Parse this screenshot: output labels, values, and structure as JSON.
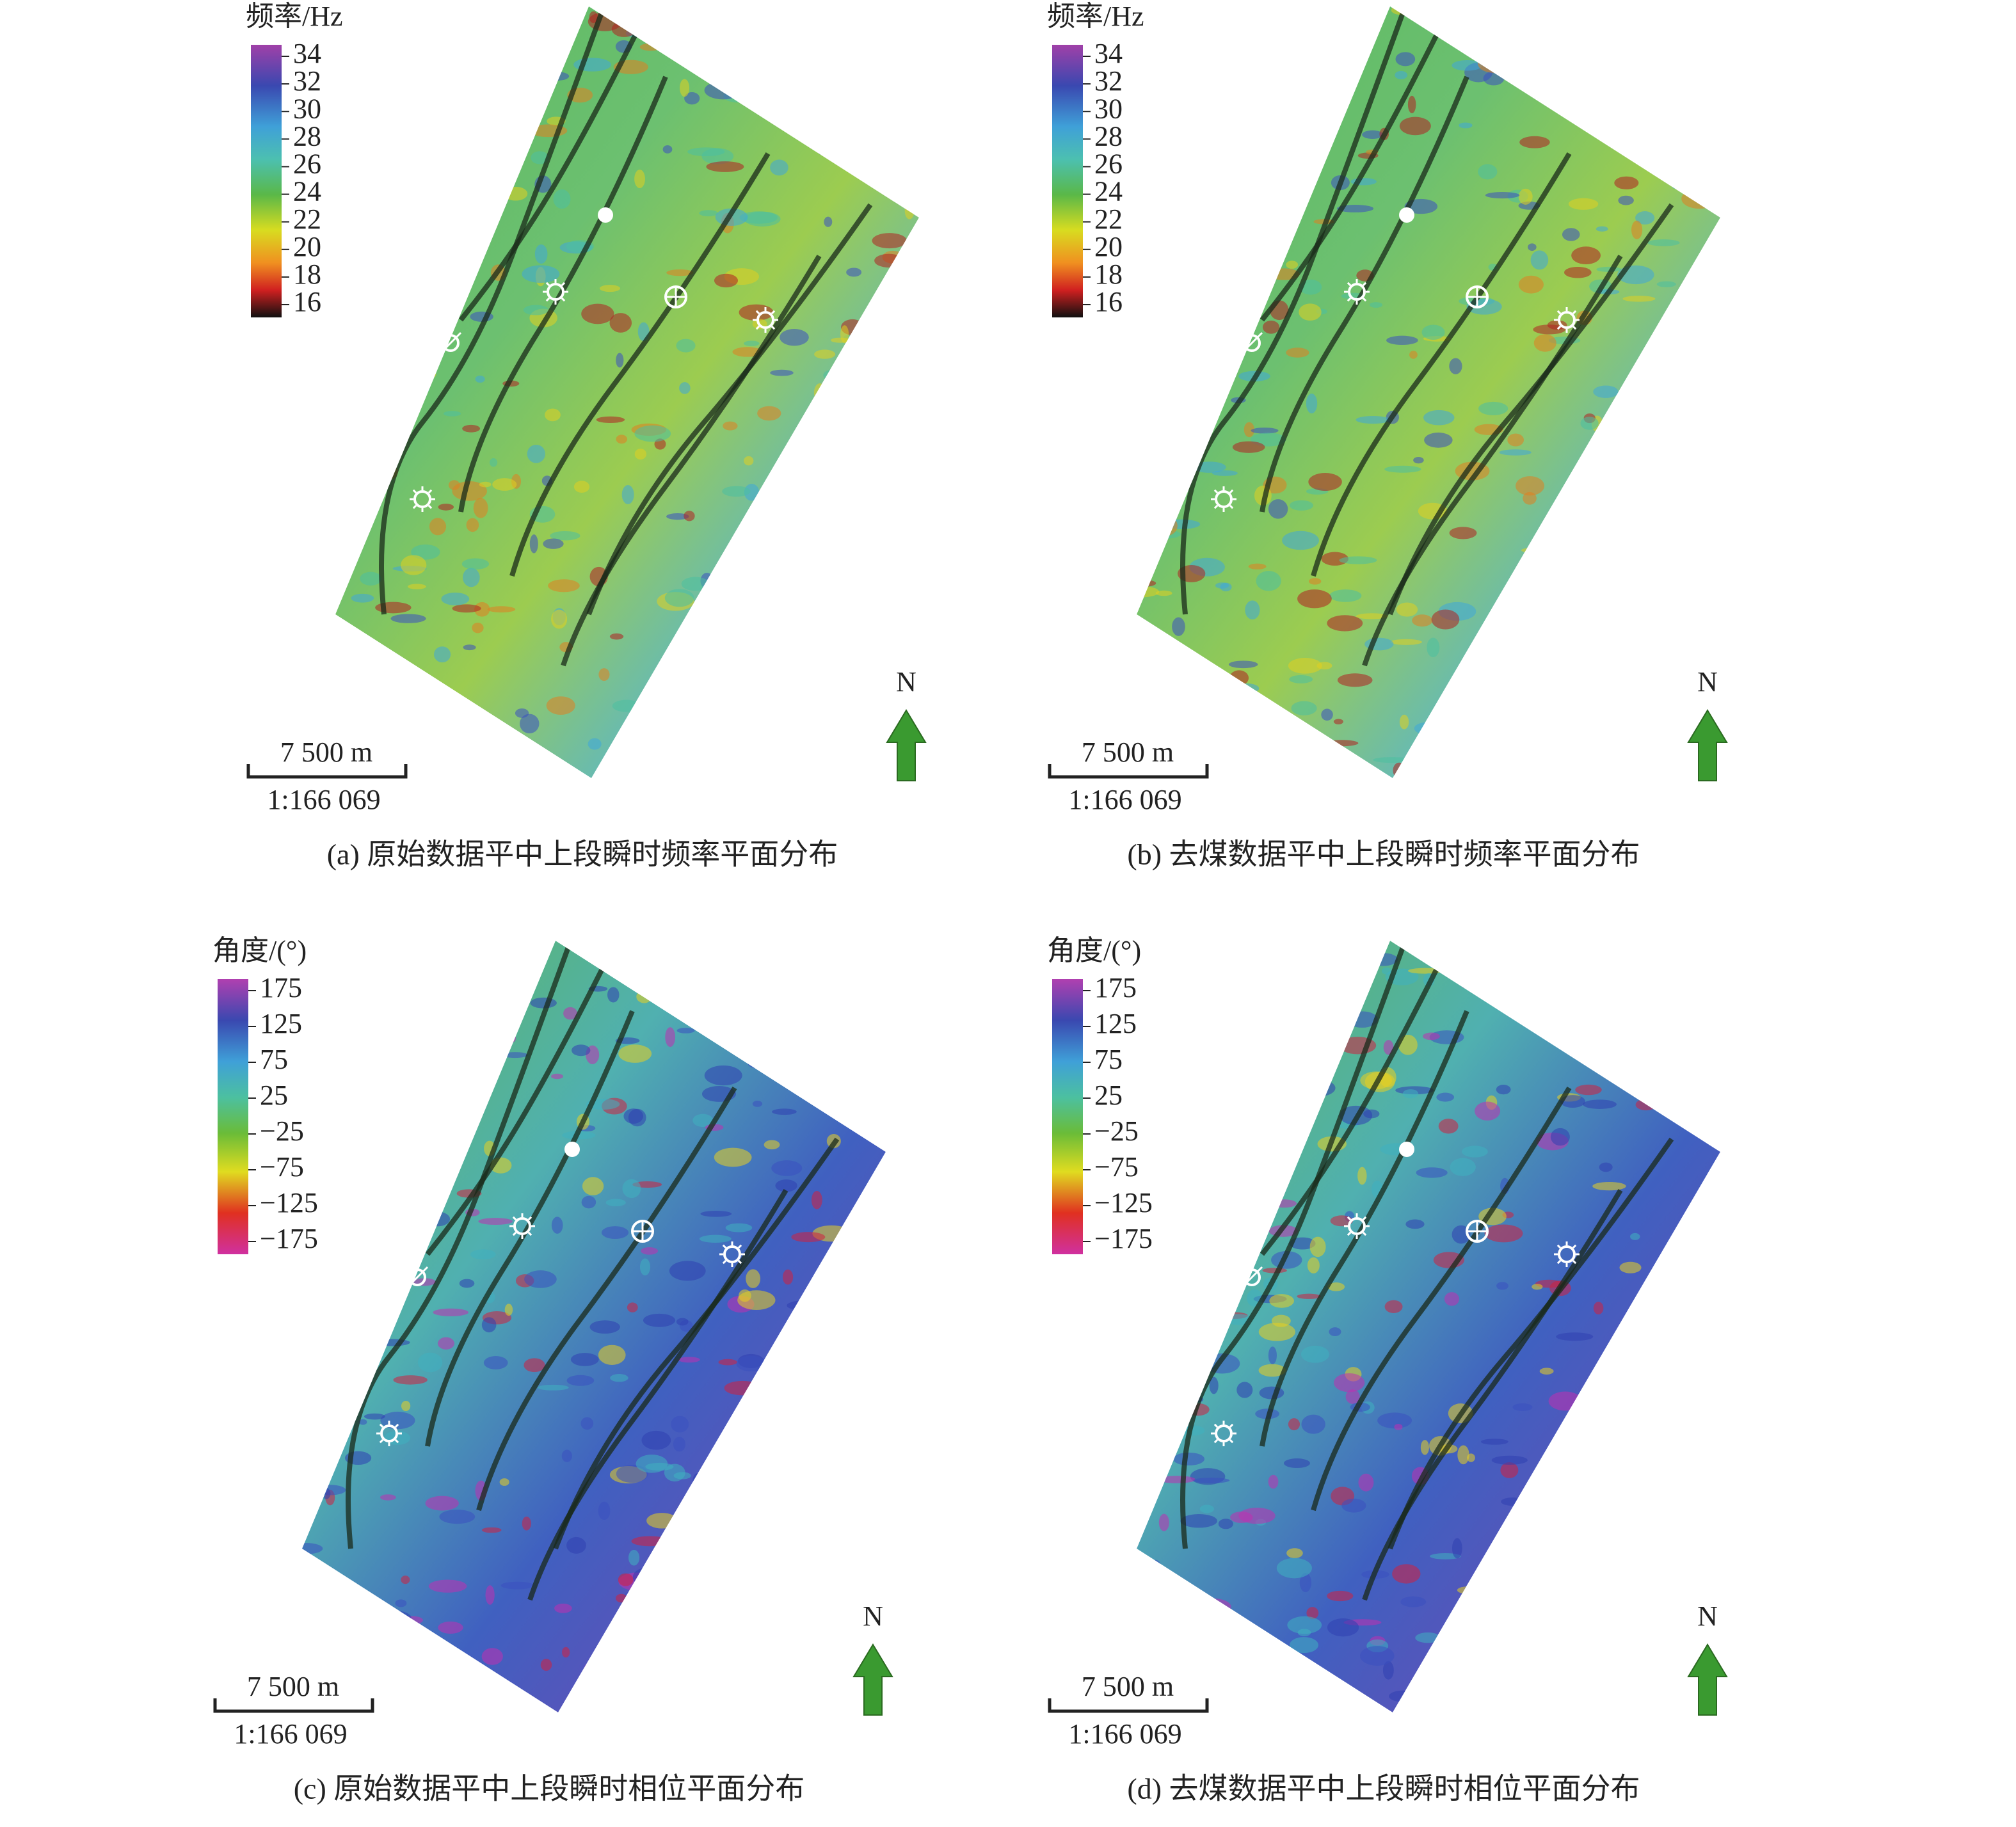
{
  "panels": [
    {
      "legend_title": "频率/Hz",
      "legend_ticks": [
        34,
        32,
        30,
        28,
        26,
        24,
        22,
        20,
        18,
        16
      ],
      "scale_label": "7 500 m",
      "scale_ratio": "1:166 069",
      "north": "N",
      "caption": "(a) 原始数据平中上段瞬时频率平面分布"
    },
    {
      "legend_title": "频率/Hz",
      "legend_ticks": [
        34,
        32,
        30,
        28,
        26,
        24,
        22,
        20,
        18,
        16
      ],
      "scale_label": "7 500 m",
      "scale_ratio": "1:166 069",
      "north": "N",
      "caption": "(b) 去煤数据平中上段瞬时频率平面分布"
    },
    {
      "legend_title": "角度/(°)",
      "legend_ticks": [
        175,
        125,
        75,
        25,
        {
          "value": -25,
          "label": "−25"
        },
        {
          "value": -75,
          "label": "−75"
        },
        {
          "value": -125,
          "label": "−125"
        },
        {
          "value": -175,
          "label": "−175"
        }
      ],
      "scale_label": "7 500 m",
      "scale_ratio": "1:166 069",
      "north": "N",
      "caption": "(c) 原始数据平中上段瞬时相位平面分布"
    },
    {
      "legend_title": "角度/(°)",
      "legend_ticks": [
        175,
        125,
        75,
        25,
        {
          "value": -25,
          "label": "−25"
        },
        {
          "value": -75,
          "label": "−75"
        },
        {
          "value": -125,
          "label": "−125"
        },
        {
          "value": -175,
          "label": "−175"
        }
      ],
      "scale_label": "7 500 m",
      "scale_ratio": "1:166 069",
      "north": "N",
      "caption": "(d) 去煤数据平中上段瞬时相位平面分布"
    }
  ]
}
